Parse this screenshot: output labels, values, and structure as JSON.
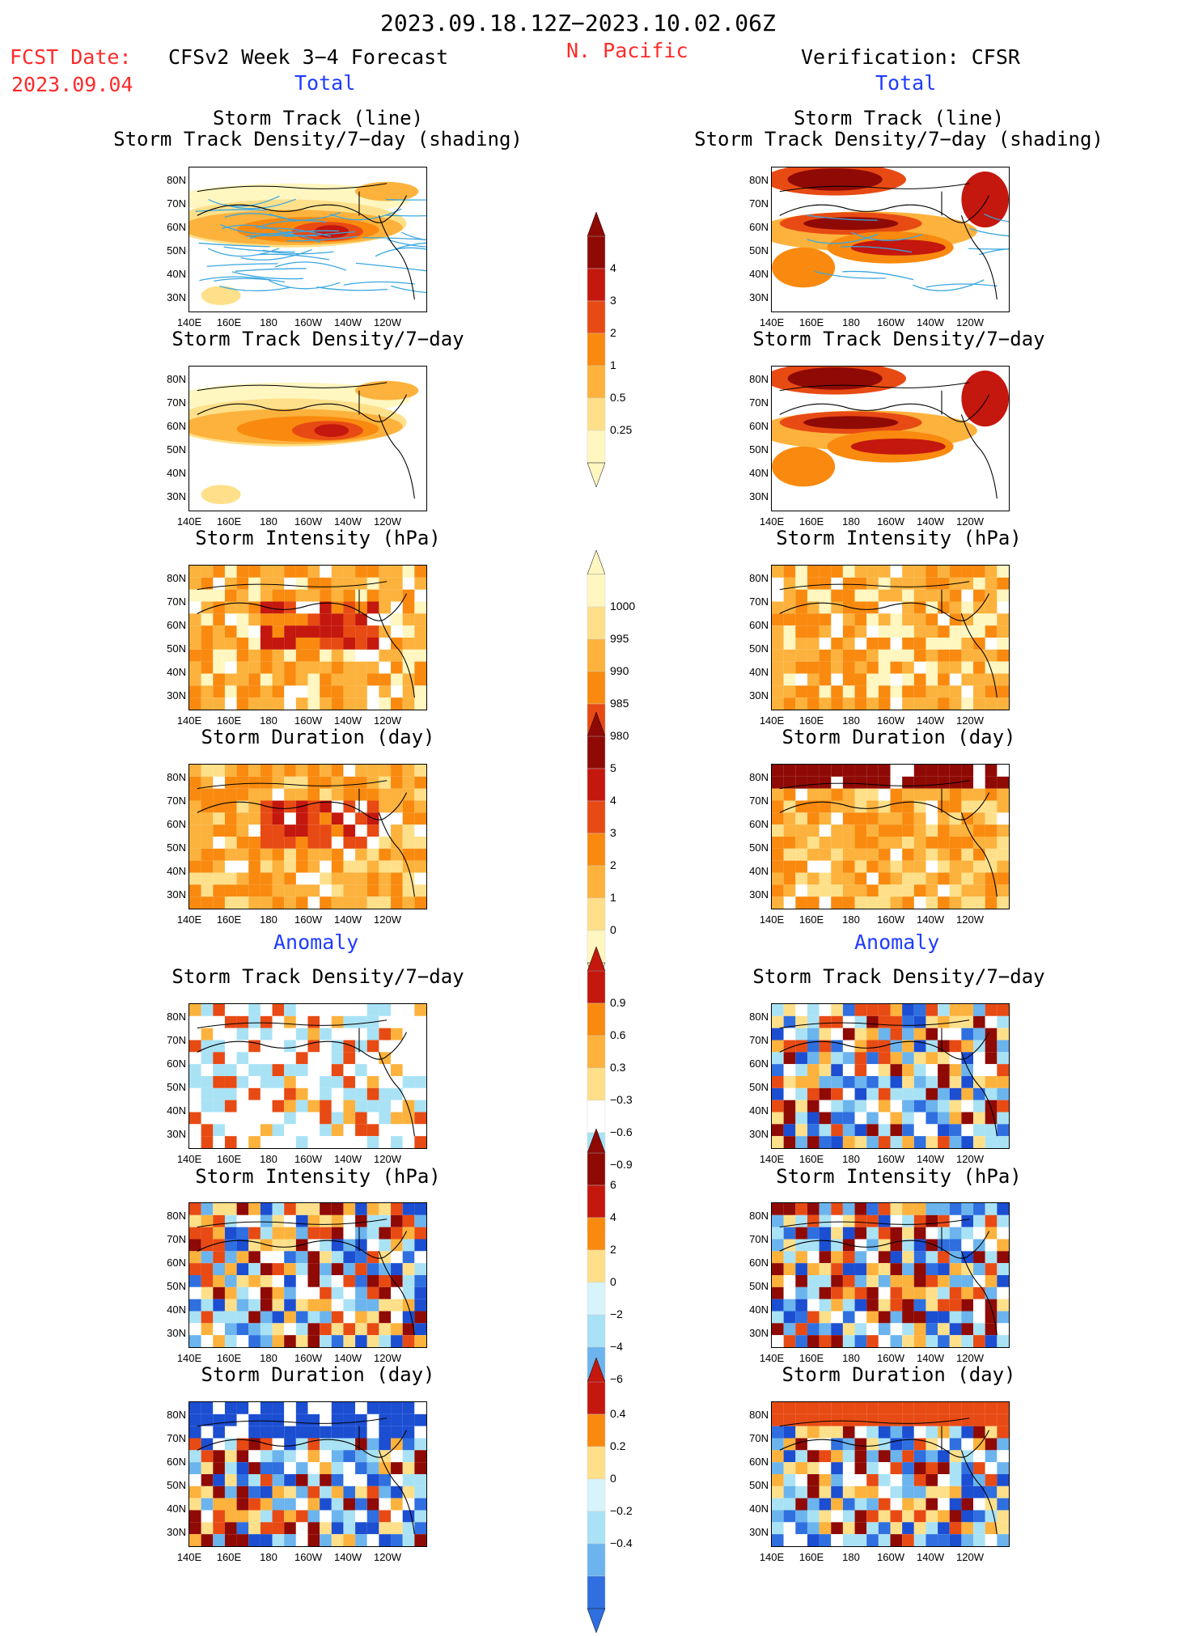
{
  "header": {
    "period": "2023.09.18.12Z−2023.10.02.06Z",
    "fcst_date_label": "FCST Date:",
    "fcst_date": "2023.09.04",
    "model_title": "CFSv2 Week 3−4 Forecast",
    "region": "N. Pacific",
    "verification": "Verification: CFSR",
    "total_left": "Total",
    "total_right": "Total",
    "anomaly_left": "Anomaly",
    "anomaly_right": "Anomaly"
  },
  "panel_titles": {
    "track_line": "Storm Track (line)",
    "track_density_shading": "Storm Track Density/7−day (shading)",
    "track_density": "Storm Track Density/7−day",
    "intensity": "Storm Intensity (hPa)",
    "duration": "Storm Duration (day)"
  },
  "axes": {
    "lat_labels": [
      "80N",
      "70N",
      "60N",
      "50N",
      "40N",
      "30N"
    ],
    "lon_labels": [
      "140E",
      "160E",
      "180",
      "160W",
      "140W",
      "120W"
    ]
  },
  "colorbars": {
    "density_total": [
      "4",
      "3",
      "2",
      "1",
      "0.5",
      "0.25"
    ],
    "intensity_total": [
      "1000",
      "995",
      "990",
      "985",
      "980"
    ],
    "duration_total": [
      "5",
      "4",
      "3",
      "2",
      "1",
      "0"
    ],
    "density_anom": [
      "0.9",
      "0.6",
      "0.3",
      "−0.3",
      "−0.6",
      "−0.9"
    ],
    "intensity_anom": [
      "6",
      "4",
      "2",
      "0",
      "−2",
      "−4",
      "−6"
    ],
    "duration_anom": [
      "0.4",
      "0.2",
      "0",
      "−0.2",
      "−0.4"
    ]
  },
  "colors": {
    "warm": [
      "#fff6c0",
      "#ffe08a",
      "#fcb23c",
      "#f98a0f",
      "#e84a14",
      "#c4170e",
      "#8f0a05"
    ],
    "cool": [
      "#d7f3fb",
      "#a9e2f5",
      "#6bb4ee",
      "#2f6fe0",
      "#1c4ed2"
    ],
    "title_red": "#ff2a2a",
    "title_blue": "#1f3cff"
  }
}
